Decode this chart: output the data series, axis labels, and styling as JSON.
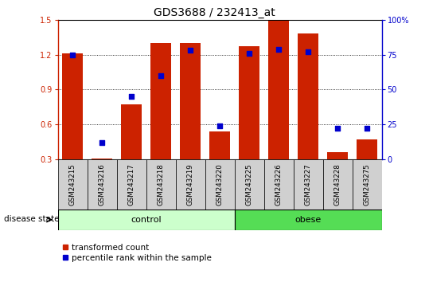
{
  "title": "GDS3688 / 232413_at",
  "samples": [
    "GSM243215",
    "GSM243216",
    "GSM243217",
    "GSM243218",
    "GSM243219",
    "GSM243220",
    "GSM243225",
    "GSM243226",
    "GSM243227",
    "GSM243228",
    "GSM243275"
  ],
  "red_values": [
    1.21,
    0.31,
    0.77,
    1.3,
    1.3,
    0.54,
    1.27,
    1.49,
    1.38,
    0.36,
    0.47
  ],
  "blue_values_pct": [
    75,
    12,
    45,
    60,
    78,
    24,
    76,
    79,
    77,
    22,
    22
  ],
  "ylim_left": [
    0.3,
    1.5
  ],
  "ylim_right": [
    0,
    100
  ],
  "yticks_left": [
    0.3,
    0.6,
    0.9,
    1.2,
    1.5
  ],
  "yticks_right": [
    0,
    25,
    50,
    75,
    100
  ],
  "bar_width": 0.7,
  "bar_bottom": 0.3,
  "control_count": 6,
  "obese_count": 5,
  "group_labels": [
    "control",
    "obese"
  ],
  "control_color": "#ccffcc",
  "obese_color": "#55dd55",
  "red_color": "#cc2200",
  "blue_color": "#0000cc",
  "bar_bg_color": "#d0d0d0",
  "legend_red": "transformed count",
  "legend_blue": "percentile rank within the sample",
  "disease_label": "disease state",
  "title_fontsize": 10,
  "tick_fontsize": 7,
  "label_fontsize": 7.5
}
